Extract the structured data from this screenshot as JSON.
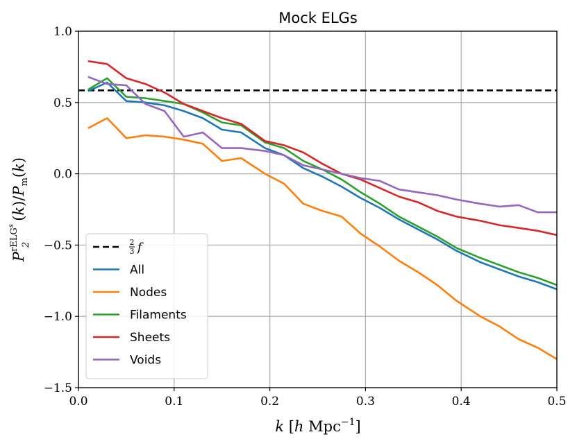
{
  "chart_data": {
    "type": "line",
    "title": "Mock ELGs",
    "xlabel": "k [h Mpc⁻¹]",
    "ylabel": "P₂^{rELGˢ}(k) / Pₘ(k)",
    "xlim": [
      0.0,
      0.5
    ],
    "ylim": [
      -1.5,
      1.0
    ],
    "xticks": [
      "0.0",
      "0.1",
      "0.2",
      "0.3",
      "0.4",
      "0.5"
    ],
    "xtick_values": [
      0.0,
      0.1,
      0.2,
      0.3,
      0.4,
      0.5
    ],
    "yticks": [
      "1.0",
      "0.5",
      "0.0",
      "−0.5",
      "−1.0",
      "−1.5"
    ],
    "ytick_values": [
      1.0,
      0.5,
      0.0,
      -0.5,
      -1.0,
      -1.5
    ],
    "grid": true,
    "legend_position": "lower-left",
    "reference_line": {
      "name": "2/3 f",
      "label_num": "2",
      "label_den": "3",
      "label_var": "f",
      "y": 0.585,
      "color": "#000000",
      "style": "dashed"
    },
    "x": [
      0.01,
      0.03,
      0.05,
      0.07,
      0.09,
      0.11,
      0.13,
      0.15,
      0.17,
      0.195,
      0.215,
      0.235,
      0.255,
      0.275,
      0.295,
      0.315,
      0.335,
      0.355,
      0.375,
      0.395,
      0.42,
      0.44,
      0.46,
      0.48,
      0.5
    ],
    "series": [
      {
        "name": "All",
        "color": "#1f77b4",
        "values": [
          0.58,
          0.64,
          0.51,
          0.5,
          0.48,
          0.44,
          0.39,
          0.31,
          0.29,
          0.18,
          0.13,
          0.04,
          -0.02,
          -0.09,
          -0.17,
          -0.24,
          -0.32,
          -0.39,
          -0.46,
          -0.54,
          -0.62,
          -0.67,
          -0.72,
          -0.76,
          -0.81
        ]
      },
      {
        "name": "Nodes",
        "color": "#ff7f0e",
        "values": [
          0.32,
          0.39,
          0.25,
          0.27,
          0.26,
          0.24,
          0.21,
          0.09,
          0.11,
          0.0,
          -0.07,
          -0.21,
          -0.26,
          -0.3,
          -0.42,
          -0.51,
          -0.61,
          -0.69,
          -0.78,
          -0.89,
          -1.0,
          -1.07,
          -1.16,
          -1.22,
          -1.3
        ]
      },
      {
        "name": "Filaments",
        "color": "#2ca02c",
        "values": [
          0.59,
          0.67,
          0.54,
          0.53,
          0.51,
          0.49,
          0.43,
          0.36,
          0.34,
          0.22,
          0.18,
          0.09,
          0.03,
          -0.04,
          -0.13,
          -0.21,
          -0.3,
          -0.37,
          -0.44,
          -0.52,
          -0.59,
          -0.64,
          -0.69,
          -0.73,
          -0.78
        ]
      },
      {
        "name": "Sheets",
        "color": "#d62728",
        "values": [
          0.79,
          0.77,
          0.67,
          0.63,
          0.57,
          0.49,
          0.44,
          0.39,
          0.35,
          0.23,
          0.2,
          0.15,
          0.07,
          0.0,
          -0.04,
          -0.1,
          -0.16,
          -0.2,
          -0.26,
          -0.3,
          -0.33,
          -0.36,
          -0.38,
          -0.4,
          -0.43
        ]
      },
      {
        "name": "Voids",
        "color": "#9467bd",
        "values": [
          0.68,
          0.63,
          0.62,
          0.49,
          0.44,
          0.26,
          0.29,
          0.18,
          0.18,
          0.16,
          0.13,
          0.06,
          0.03,
          0.0,
          -0.03,
          -0.05,
          -0.11,
          -0.13,
          -0.15,
          -0.18,
          -0.21,
          -0.23,
          -0.22,
          -0.27,
          -0.27
        ]
      }
    ]
  }
}
